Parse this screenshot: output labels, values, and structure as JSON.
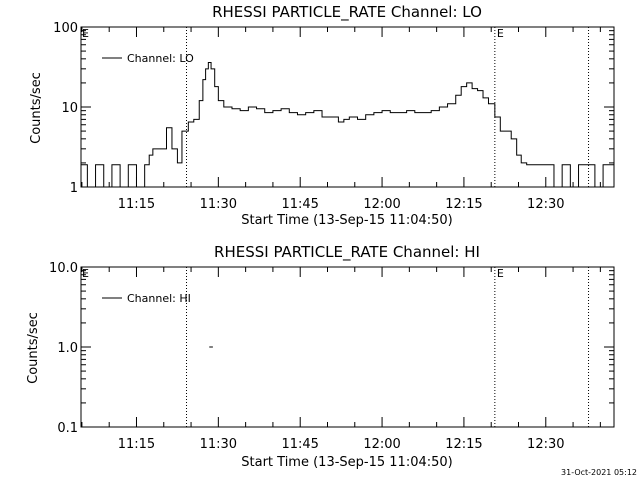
{
  "footer_date": "31-Oct-2021 05:12",
  "chart_data": [
    {
      "type": "line",
      "title": "RHESSI PARTICLE_RATE Channel: LO",
      "xlabel": "Start Time (13-Sep-15 11:04:50)",
      "ylabel": "Counts/sec",
      "yscale": "log",
      "xlim": [
        "11:04:50",
        "12:42:30"
      ],
      "ylim": [
        1,
        100
      ],
      "ytick_values": [
        1,
        10,
        100
      ],
      "ytick_labels": [
        "1",
        "10",
        "100"
      ],
      "xtick_values": [
        "11:15",
        "11:30",
        "11:45",
        "12:00",
        "12:15",
        "12:30"
      ],
      "xtick_labels": [
        "11:15",
        "11:30",
        "11:45",
        "12:00",
        "12:15",
        "12:30"
      ],
      "legend_position": "top-left",
      "markers": [
        {
          "time": "11:24:10",
          "label": ""
        },
        {
          "time": "12:20:40",
          "label": "E"
        },
        {
          "time": "12:37:50",
          "label": ""
        }
      ],
      "corner_label": "E",
      "series": [
        {
          "name": "Channel: LO",
          "x": [
            "11:04:50",
            "11:06:00",
            "11:07:30",
            "11:09:00",
            "11:10:30",
            "11:12:00",
            "11:13:30",
            "11:15:00",
            "11:16:30",
            "11:17:20",
            "11:18:00",
            "11:19:30",
            "11:20:30",
            "11:21:30",
            "11:22:30",
            "11:23:20",
            "11:24:30",
            "11:25:30",
            "11:26:30",
            "11:27:10",
            "11:27:40",
            "11:28:10",
            "11:28:40",
            "11:29:20",
            "11:30:00",
            "11:31:00",
            "11:32:30",
            "11:34:00",
            "11:35:30",
            "11:37:00",
            "11:38:30",
            "11:40:00",
            "11:41:30",
            "11:43:00",
            "11:44:30",
            "11:46:00",
            "11:47:30",
            "11:49:00",
            "11:50:30",
            "11:52:00",
            "11:53:00",
            "11:54:00",
            "11:55:30",
            "11:57:00",
            "11:58:30",
            "12:00:00",
            "12:01:30",
            "12:03:00",
            "12:04:30",
            "12:06:00",
            "12:07:30",
            "12:09:00",
            "12:10:30",
            "12:12:00",
            "12:13:30",
            "12:14:30",
            "12:15:30",
            "12:16:30",
            "12:17:30",
            "12:18:30",
            "12:19:30",
            "12:20:40",
            "12:21:40",
            "12:22:40",
            "12:23:40",
            "12:24:40",
            "12:25:30",
            "12:26:30",
            "12:27:30",
            "12:28:30",
            "12:30:00",
            "12:31:30",
            "12:33:00",
            "12:34:30",
            "12:36:00",
            "12:37:30",
            "12:39:00",
            "12:40:30",
            "12:42:30"
          ],
          "values": [
            1.9,
            1.0,
            1.9,
            1.0,
            1.9,
            1.0,
            1.9,
            1.0,
            1.9,
            2.5,
            3.0,
            3.0,
            5.5,
            3.0,
            2.0,
            5.0,
            6.5,
            7.0,
            12.0,
            22.0,
            30.0,
            36.0,
            30.0,
            18.0,
            12.0,
            10.0,
            9.5,
            9.0,
            10.0,
            9.5,
            8.5,
            9.0,
            9.5,
            8.5,
            8.0,
            8.5,
            9.0,
            7.5,
            7.5,
            6.5,
            7.0,
            7.5,
            7.0,
            8.0,
            8.5,
            9.0,
            8.5,
            8.5,
            9.0,
            8.5,
            8.5,
            9.0,
            10.0,
            11.0,
            14.0,
            18.0,
            20.0,
            17.0,
            16.0,
            13.0,
            11.0,
            7.5,
            5.0,
            5.0,
            4.0,
            2.5,
            2.0,
            1.9,
            1.9,
            1.9,
            1.9,
            1.0,
            1.9,
            1.0,
            1.9,
            1.9,
            1.0,
            1.9,
            1.9
          ]
        }
      ]
    },
    {
      "type": "line",
      "title": "RHESSI PARTICLE_RATE Channel: HI",
      "xlabel": "Start Time (13-Sep-15 11:04:50)",
      "ylabel": "Counts/sec",
      "yscale": "log",
      "xlim": [
        "11:04:50",
        "12:42:30"
      ],
      "ylim": [
        0.1,
        10
      ],
      "ytick_values": [
        0.1,
        1,
        10
      ],
      "ytick_labels": [
        "0.1",
        "1.0",
        "10.0"
      ],
      "xtick_values": [
        "11:15",
        "11:30",
        "11:45",
        "12:00",
        "12:15",
        "12:30"
      ],
      "xtick_labels": [
        "11:15",
        "11:30",
        "11:45",
        "12:00",
        "12:15",
        "12:30"
      ],
      "legend_position": "top-left",
      "markers": [
        {
          "time": "11:24:10",
          "label": ""
        },
        {
          "time": "12:20:40",
          "label": "E"
        },
        {
          "time": "12:37:50",
          "label": ""
        }
      ],
      "corner_label": "E",
      "series": [
        {
          "name": "Channel: HI",
          "x": [
            "11:28:20",
            "11:29:00"
          ],
          "values": [
            1.0,
            1.0
          ]
        }
      ]
    }
  ]
}
